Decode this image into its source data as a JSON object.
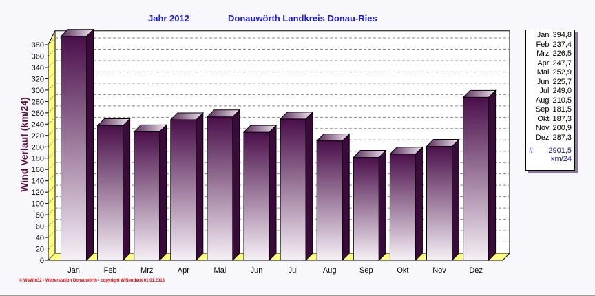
{
  "header": {
    "year": "Jahr  2012",
    "station": "Donauwörth Landkreis Donau-Ries"
  },
  "footer": "© WsWin32  -  Wetterstation Donauwörth  -  copyright W.Neudeck  01.01.2013",
  "chart_data": {
    "type": "bar",
    "categories": [
      "Jan",
      "Feb",
      "Mrz",
      "Apr",
      "Mai",
      "Jun",
      "Jul",
      "Aug",
      "Sep",
      "Okt",
      "Nov",
      "Dez"
    ],
    "values": [
      394.8,
      237.4,
      226.5,
      247.7,
      252.9,
      225.7,
      249.0,
      210.5,
      181.5,
      187.3,
      200.9,
      287.3
    ],
    "value_labels": [
      "394,8",
      "237,4",
      "226,5",
      "247,7",
      "252,9",
      "225,7",
      "249,0",
      "210,5",
      "181,5",
      "187,3",
      "200,9",
      "287,3"
    ],
    "ylabel": "Wind Verlauf   (km/24)",
    "ylim": [
      0,
      390
    ],
    "yticks": [
      0,
      20,
      40,
      60,
      80,
      100,
      120,
      140,
      160,
      180,
      200,
      220,
      240,
      260,
      280,
      300,
      320,
      340,
      360,
      380
    ],
    "grid": true,
    "legend_position": "right",
    "colors": {
      "bar_dark": "#4a0f4a",
      "bar_light": "#f4eef4",
      "wall": "#ffff80",
      "title": "#1a1ad8",
      "ylabel": "#5a1040"
    }
  },
  "legend": {
    "sum_symbol": "#",
    "sum": "2901,5",
    "unit": "km/24"
  }
}
